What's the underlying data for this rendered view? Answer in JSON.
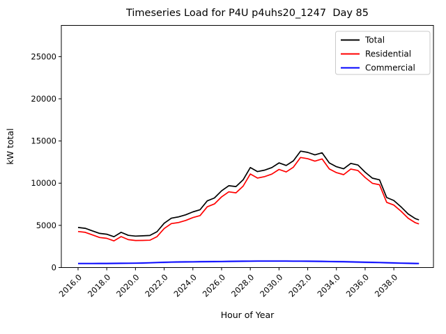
{
  "figure": {
    "background": "#ffffff",
    "spine_color": "#000000"
  },
  "chart_data": {
    "type": "line",
    "title": "Timeseries Load for P4U p4uhs20_1247  Day 85",
    "xlabel": "Hour of Year",
    "ylabel": "kW total",
    "grid": false,
    "xlim": [
      2014.835,
      2040.76
    ],
    "ylim": [
      0,
      28700
    ],
    "xticks": {
      "values": [
        2016,
        2018,
        2020,
        2022,
        2024,
        2026,
        2028,
        2030,
        2032,
        2034,
        2036,
        2038
      ],
      "labels": [
        "2016.0",
        "2018.0",
        "2020.0",
        "2022.0",
        "2024.0",
        "2026.0",
        "2028.0",
        "2030.0",
        "2032.0",
        "2034.0",
        "2036.0",
        "2038.0"
      ],
      "rotation": -45
    },
    "yticks": {
      "values": [
        0,
        5000,
        10000,
        15000,
        20000,
        25000
      ],
      "labels": [
        "0",
        "5000",
        "10000",
        "15000",
        "20000",
        "25000"
      ]
    },
    "x": [
      2016.0,
      2016.5,
      2017.0,
      2017.5,
      2018.0,
      2018.5,
      2019.0,
      2019.5,
      2020.0,
      2020.5,
      2021.0,
      2021.5,
      2022.0,
      2022.5,
      2023.0,
      2023.5,
      2024.0,
      2024.5,
      2025.0,
      2025.5,
      2026.0,
      2026.5,
      2027.0,
      2027.5,
      2028.0,
      2028.5,
      2029.0,
      2029.5,
      2030.0,
      2030.5,
      2031.0,
      2031.5,
      2032.0,
      2032.5,
      2033.0,
      2033.5,
      2034.0,
      2034.5,
      2035.0,
      2035.5,
      2036.0,
      2036.5,
      2037.0,
      2037.5,
      2038.0,
      2038.5,
      2039.0,
      2039.5,
      2039.75
    ],
    "series": [
      {
        "name": "Total",
        "color": "#000000",
        "values": [
          4750,
          4650,
          4350,
          4050,
          3950,
          3650,
          4170,
          3820,
          3730,
          3760,
          3800,
          4250,
          5250,
          5850,
          6000,
          6250,
          6600,
          6850,
          7900,
          8250,
          9100,
          9700,
          9600,
          10400,
          11850,
          11370,
          11550,
          11850,
          12400,
          12100,
          12650,
          13800,
          13650,
          13350,
          13600,
          12400,
          11950,
          11700,
          12350,
          12150,
          11300,
          10600,
          10400,
          8300,
          7950,
          7200,
          6350,
          5800,
          5650
        ]
      },
      {
        "name": "Residential",
        "color": "#ff0000",
        "values": [
          4270,
          4170,
          3870,
          3565,
          3460,
          3155,
          3670,
          3310,
          3210,
          3220,
          3240,
          3660,
          4630,
          5210,
          5340,
          5580,
          5920,
          6160,
          7200,
          7540,
          8380,
          8970,
          8860,
          9650,
          11090,
          10605,
          10780,
          11080,
          11630,
          11335,
          11890,
          13045,
          12900,
          12610,
          12870,
          11685,
          11250,
          11010,
          11680,
          11500,
          10670,
          9990,
          9810,
          7730,
          7405,
          6680,
          5850,
          5310,
          5170
        ]
      },
      {
        "name": "Commercial",
        "color": "#0000ff",
        "glow_color": "#9999ff",
        "values": [
          480,
          480,
          480,
          485,
          490,
          495,
          500,
          510,
          520,
          540,
          560,
          590,
          620,
          640,
          660,
          670,
          680,
          690,
          700,
          710,
          720,
          730,
          740,
          750,
          760,
          765,
          770,
          770,
          770,
          765,
          760,
          755,
          750,
          740,
          730,
          715,
          700,
          690,
          670,
          650,
          630,
          610,
          590,
          570,
          545,
          520,
          500,
          490,
          480
        ]
      }
    ],
    "legend": {
      "position": "upper right",
      "border_color": "#c9c9c9",
      "entries": [
        "Total",
        "Residential",
        "Commercial"
      ]
    }
  }
}
